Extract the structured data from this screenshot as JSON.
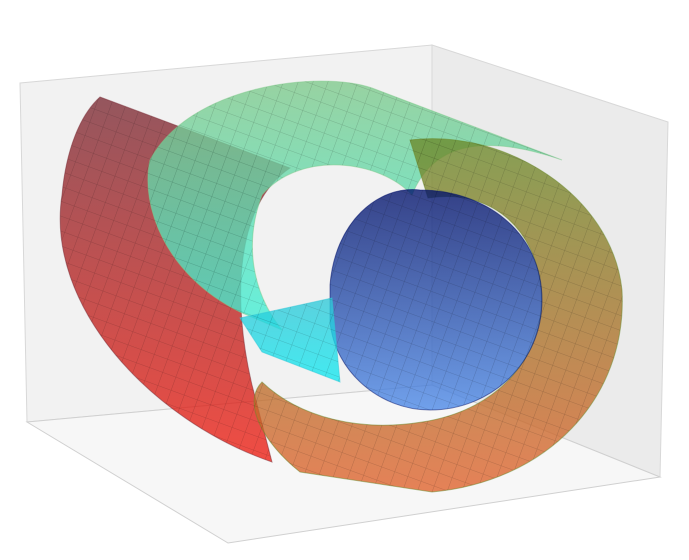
{
  "chart_data": {
    "type": "surface",
    "series": [
      {
        "colors": [
          "#7a2a34",
          "#ee1c10"
        ]
      },
      {
        "colors": [
          "#7ec98a",
          "#3cf0d8"
        ]
      },
      {
        "colors": [
          "#6a8a2a",
          "#e0602a"
        ]
      },
      {
        "colors": [
          "#00106a",
          "#4a88e8"
        ]
      },
      {
        "colors": [
          "#30c8d8",
          "#10e8f0"
        ]
      }
    ],
    "grid": true
  }
}
